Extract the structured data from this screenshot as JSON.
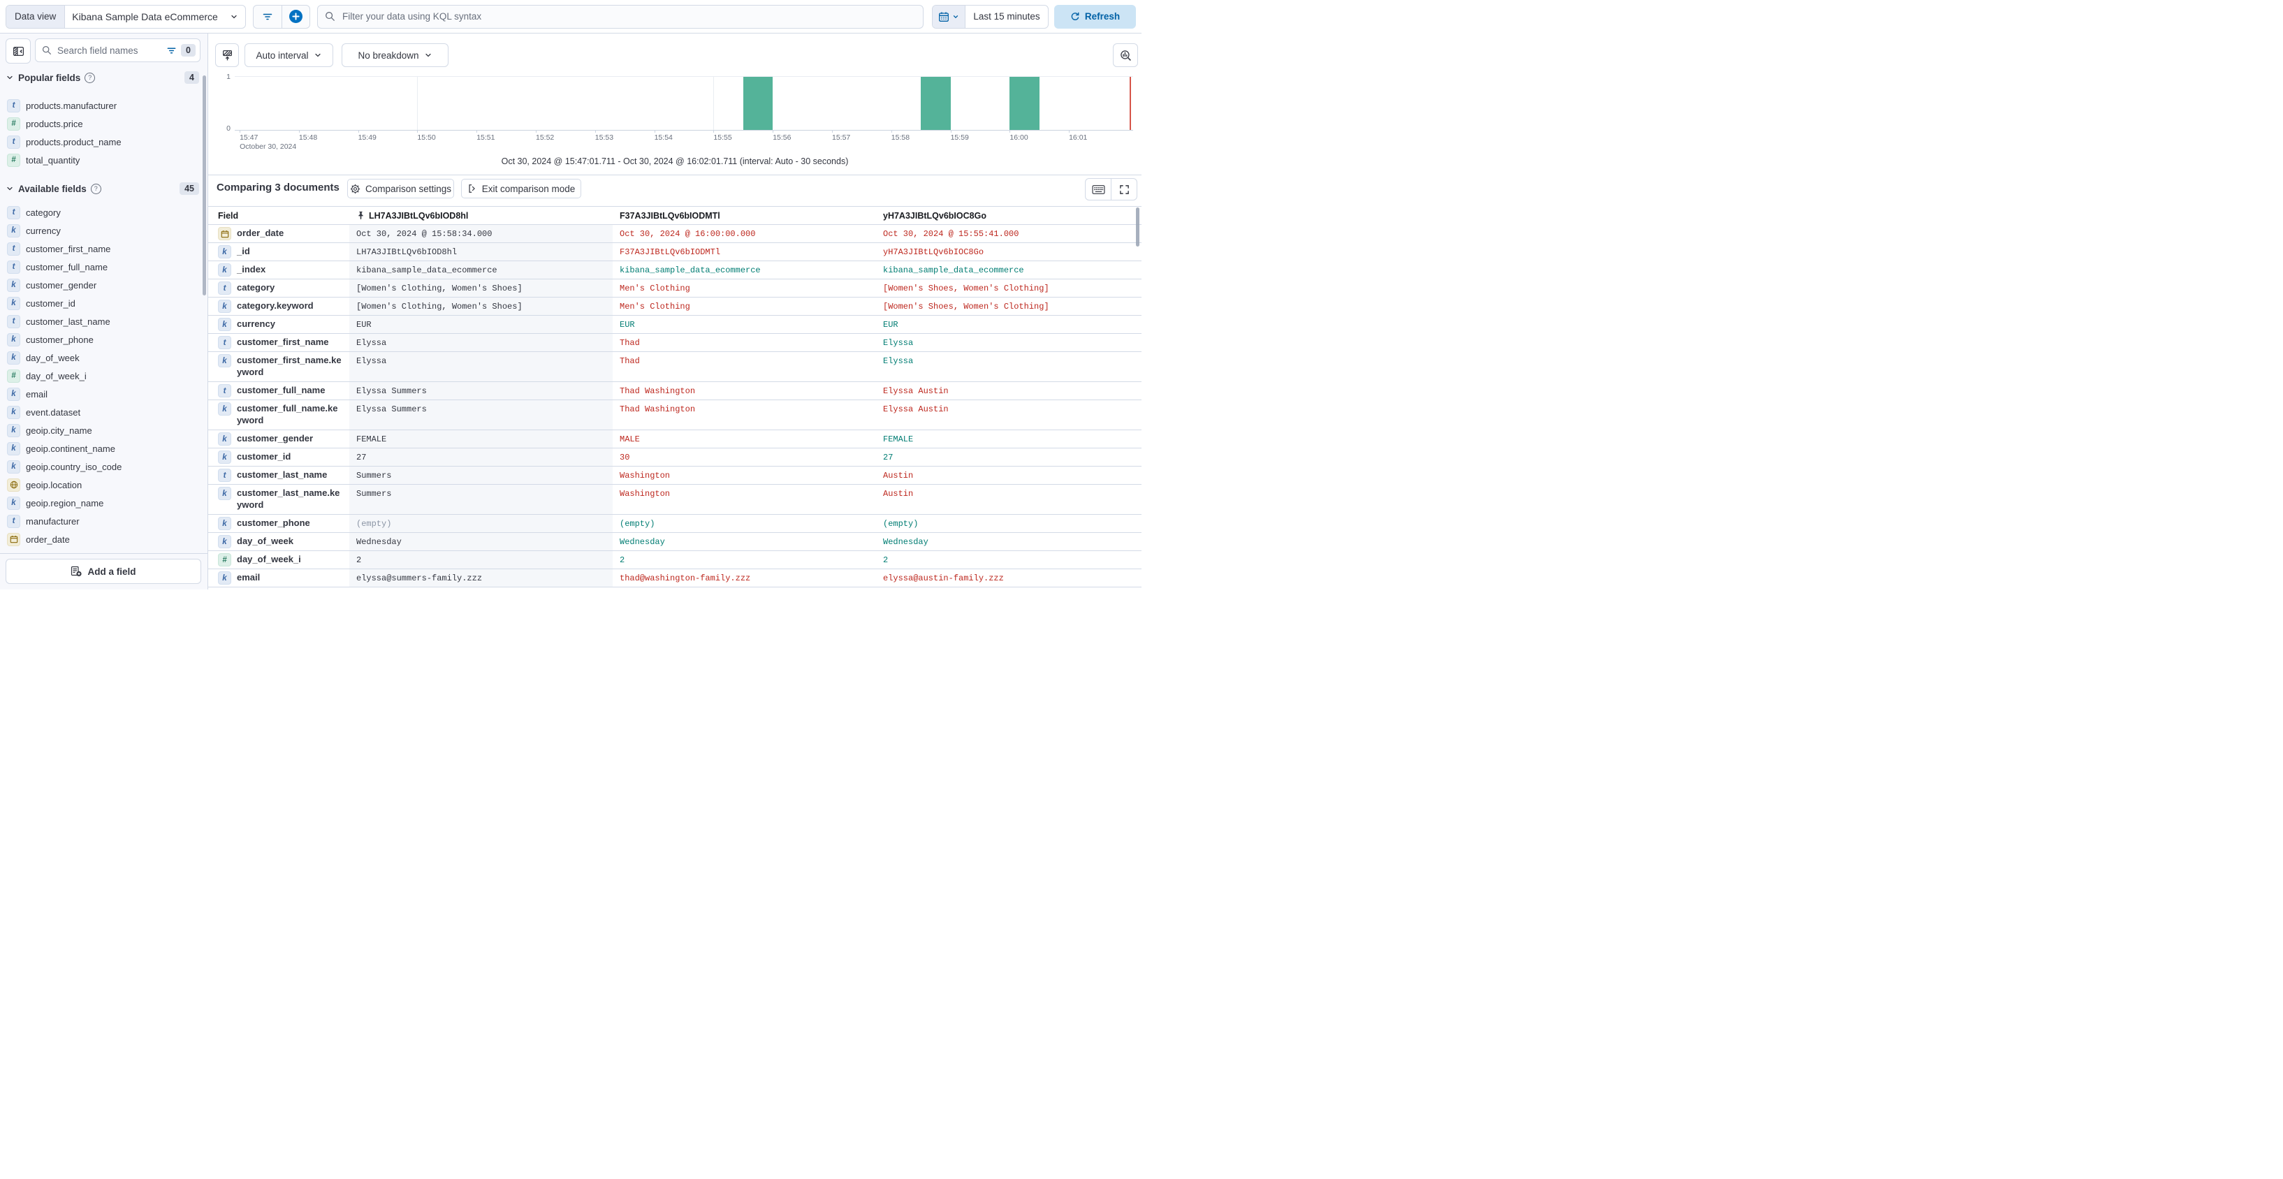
{
  "topbar": {
    "data_view_label": "Data view",
    "data_view_value": "Kibana Sample Data eCommerce",
    "kql_placeholder": "Filter your data using KQL syntax",
    "time_range_label": "Last 15 minutes",
    "refresh_label": "Refresh"
  },
  "sidebar": {
    "search_placeholder": "Search field names",
    "filter_count": "0",
    "sections": [
      {
        "title": "Popular fields",
        "count": "4",
        "items": [
          {
            "icon": "t",
            "name": "products.manufacturer"
          },
          {
            "icon": "#",
            "name": "products.price"
          },
          {
            "icon": "t",
            "name": "products.product_name"
          },
          {
            "icon": "#",
            "name": "total_quantity"
          }
        ]
      },
      {
        "title": "Available fields",
        "count": "45",
        "items": [
          {
            "icon": "t",
            "name": "category"
          },
          {
            "icon": "k",
            "name": "currency"
          },
          {
            "icon": "t",
            "name": "customer_first_name"
          },
          {
            "icon": "t",
            "name": "customer_full_name"
          },
          {
            "icon": "k",
            "name": "customer_gender"
          },
          {
            "icon": "k",
            "name": "customer_id"
          },
          {
            "icon": "t",
            "name": "customer_last_name"
          },
          {
            "icon": "k",
            "name": "customer_phone"
          },
          {
            "icon": "k",
            "name": "day_of_week"
          },
          {
            "icon": "#",
            "name": "day_of_week_i"
          },
          {
            "icon": "k",
            "name": "email"
          },
          {
            "icon": "k",
            "name": "event.dataset"
          },
          {
            "icon": "k",
            "name": "geoip.city_name"
          },
          {
            "icon": "k",
            "name": "geoip.continent_name"
          },
          {
            "icon": "k",
            "name": "geoip.country_iso_code"
          },
          {
            "icon": "geo",
            "name": "geoip.location"
          },
          {
            "icon": "k",
            "name": "geoip.region_name"
          },
          {
            "icon": "t",
            "name": "manufacturer"
          },
          {
            "icon": "date",
            "name": "order_date"
          }
        ]
      }
    ],
    "add_field_label": "Add a field"
  },
  "chart": {
    "interval_label": "Auto interval",
    "breakdown_label": "No breakdown",
    "caption": "Oct 30, 2024 @ 15:47:01.711 - Oct 30, 2024 @ 16:02:01.711 (interval: Auto - 30 seconds)",
    "chart_data": {
      "type": "bar",
      "title": "",
      "xlabel": "",
      "ylabel": "",
      "x_context": "October 30, 2024",
      "x_ticks": [
        "15:47",
        "15:48",
        "15:49",
        "15:50",
        "15:51",
        "15:52",
        "15:53",
        "15:54",
        "15:55",
        "15:56",
        "15:57",
        "15:58",
        "15:59",
        "16:00",
        "16:01"
      ],
      "gridline_times": [
        "15:50",
        "15:55",
        "16:00"
      ],
      "y_ticks": [
        "1",
        "0"
      ],
      "ylim": [
        0,
        1
      ],
      "bar_interval_seconds": 30,
      "bars": [
        {
          "time": "15:55:30",
          "value": 1
        },
        {
          "time": "15:58:30",
          "value": 1
        },
        {
          "time": "16:00:00",
          "value": 1
        }
      ],
      "time_marker": "16:02:01.711",
      "bar_color": "#54B399",
      "time_marker_color": "#D65449"
    }
  },
  "comparison": {
    "title": "Comparing 3 documents",
    "settings_label": "Comparison settings",
    "exit_label": "Exit comparison mode",
    "table": {
      "field_header": "Field",
      "doc_columns": [
        {
          "id": "LH7A3JIBtLQv6bIOD8hl",
          "pinned": true
        },
        {
          "id": "F37A3JIBtLQv6bIODMTl",
          "pinned": false
        },
        {
          "id": "yH7A3JIBtLQv6bIOC8Go",
          "pinned": false
        }
      ],
      "rows": [
        {
          "icon": "date",
          "field": "order_date",
          "base": "Oct 30, 2024 @ 15:58:34.000",
          "values": [
            {
              "text": "Oct 30, 2024 @ 16:00:00.000",
              "match": false
            },
            {
              "text": "Oct 30, 2024 @ 15:55:41.000",
              "match": false
            }
          ]
        },
        {
          "icon": "k",
          "field": "_id",
          "base": "LH7A3JIBtLQv6bIOD8hl",
          "values": [
            {
              "text": "F37A3JIBtLQv6bIODMTl",
              "match": false
            },
            {
              "text": "yH7A3JIBtLQv6bIOC8Go",
              "match": false
            }
          ]
        },
        {
          "icon": "k",
          "field": "_index",
          "base": "kibana_sample_data_ecommerce",
          "values": [
            {
              "text": "kibana_sample_data_ecommerce",
              "match": true
            },
            {
              "text": "kibana_sample_data_ecommerce",
              "match": true
            }
          ]
        },
        {
          "icon": "t",
          "field": "category",
          "base": "[Women's Clothing, Women's Shoes]",
          "values": [
            {
              "text": "Men's Clothing",
              "match": false
            },
            {
              "text": "[Women's Shoes, Women's Clothing]",
              "match": false
            }
          ]
        },
        {
          "icon": "k",
          "field": "category.keyword",
          "base": "[Women's Clothing, Women's Shoes]",
          "values": [
            {
              "text": "Men's Clothing",
              "match": false
            },
            {
              "text": "[Women's Shoes, Women's Clothing]",
              "match": false
            }
          ]
        },
        {
          "icon": "k",
          "field": "currency",
          "base": "EUR",
          "values": [
            {
              "text": "EUR",
              "match": true
            },
            {
              "text": "EUR",
              "match": true
            }
          ]
        },
        {
          "icon": "t",
          "field": "customer_first_name",
          "base": "Elyssa",
          "values": [
            {
              "text": "Thad",
              "match": false
            },
            {
              "text": "Elyssa",
              "match": true
            }
          ]
        },
        {
          "icon": "k",
          "field": "customer_first_name.keyword",
          "base": "Elyssa",
          "tall": true,
          "values": [
            {
              "text": "Thad",
              "match": false
            },
            {
              "text": "Elyssa",
              "match": true
            }
          ]
        },
        {
          "icon": "t",
          "field": "customer_full_name",
          "base": "Elyssa Summers",
          "values": [
            {
              "text": "Thad Washington",
              "match": false
            },
            {
              "text": "Elyssa Austin",
              "match": false
            }
          ]
        },
        {
          "icon": "k",
          "field": "customer_full_name.keyword",
          "base": "Elyssa Summers",
          "tall": true,
          "values": [
            {
              "text": "Thad Washington",
              "match": false
            },
            {
              "text": "Elyssa Austin",
              "match": false
            }
          ]
        },
        {
          "icon": "k",
          "field": "customer_gender",
          "base": "FEMALE",
          "values": [
            {
              "text": "MALE",
              "match": false
            },
            {
              "text": "FEMALE",
              "match": true
            }
          ]
        },
        {
          "icon": "k",
          "field": "customer_id",
          "base": "27",
          "values": [
            {
              "text": "30",
              "match": false
            },
            {
              "text": "27",
              "match": true
            }
          ]
        },
        {
          "icon": "t",
          "field": "customer_last_name",
          "base": "Summers",
          "values": [
            {
              "text": "Washington",
              "match": false
            },
            {
              "text": "Austin",
              "match": false
            }
          ]
        },
        {
          "icon": "k",
          "field": "customer_last_name.keyword",
          "base": "Summers",
          "tall": true,
          "values": [
            {
              "text": "Washington",
              "match": false
            },
            {
              "text": "Austin",
              "match": false
            }
          ]
        },
        {
          "icon": "k",
          "field": "customer_phone",
          "base": "(empty)",
          "empty": true,
          "values": [
            {
              "text": "(empty)",
              "match": true
            },
            {
              "text": "(empty)",
              "match": true
            }
          ]
        },
        {
          "icon": "k",
          "field": "day_of_week",
          "base": "Wednesday",
          "values": [
            {
              "text": "Wednesday",
              "match": true
            },
            {
              "text": "Wednesday",
              "match": true
            }
          ]
        },
        {
          "icon": "#",
          "field": "day_of_week_i",
          "base": "2",
          "values": [
            {
              "text": "2",
              "match": true
            },
            {
              "text": "2",
              "match": true
            }
          ]
        },
        {
          "icon": "k",
          "field": "email",
          "base": "elyssa@summers-family.zzz",
          "values": [
            {
              "text": "thad@washington-family.zzz",
              "match": false
            },
            {
              "text": "elyssa@austin-family.zzz",
              "match": false
            }
          ]
        }
      ]
    }
  },
  "colors": {
    "accent_blue": "#0061A6",
    "diff_red": "#BD271E",
    "match_teal": "#017D73",
    "bar_green": "#54B399",
    "border": "#D3DAE6"
  }
}
